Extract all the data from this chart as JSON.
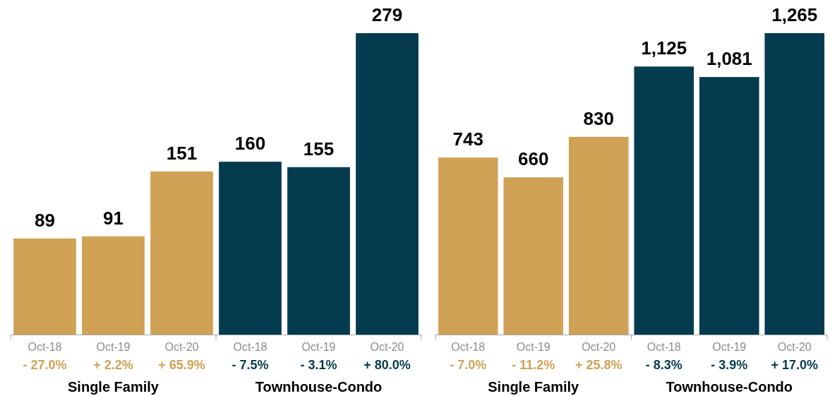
{
  "chart_data": [
    {
      "type": "bar",
      "categories": [
        "Single Family",
        "Townhouse-Condo"
      ],
      "series": [
        {
          "name": "Oct-18",
          "colors": [
            "#cfa256",
            "#053b4f"
          ],
          "values": [
            89,
            160
          ]
        },
        {
          "name": "Oct-19",
          "colors": [
            "#cfa256",
            "#053b4f"
          ],
          "values": [
            91,
            155
          ]
        },
        {
          "name": "Oct-20",
          "colors": [
            "#cfa256",
            "#053b4f"
          ],
          "values": [
            151,
            279
          ]
        }
      ],
      "data_labels": true,
      "annotations": [
        "- 27.0%",
        "+ 2.2%",
        "+ 65.9%",
        "- 7.5%",
        "- 3.1%",
        "+ 80.0%"
      ]
    },
    {
      "type": "bar",
      "categories": [
        "Single Family",
        "Townhouse-Condo"
      ],
      "series": [
        {
          "name": "Oct-18",
          "colors": [
            "#cfa256",
            "#053b4f"
          ],
          "values": [
            743,
            1125
          ],
          "value_labels": [
            "743",
            "1,125"
          ]
        },
        {
          "name": "Oct-19",
          "colors": [
            "#cfa256",
            "#053b4f"
          ],
          "values": [
            660,
            1081
          ],
          "value_labels": [
            "660",
            "1,081"
          ]
        },
        {
          "name": "Oct-20",
          "colors": [
            "#cfa256",
            "#053b4f"
          ],
          "values": [
            830,
            1265
          ],
          "value_labels": [
            "830",
            "1,265"
          ]
        }
      ],
      "annotations": [
        "- 7.0%",
        "- 11.2%",
        "+ 25.8%",
        "- 8.3%",
        "- 3.9%",
        "+ 17.0%"
      ]
    }
  ]
}
